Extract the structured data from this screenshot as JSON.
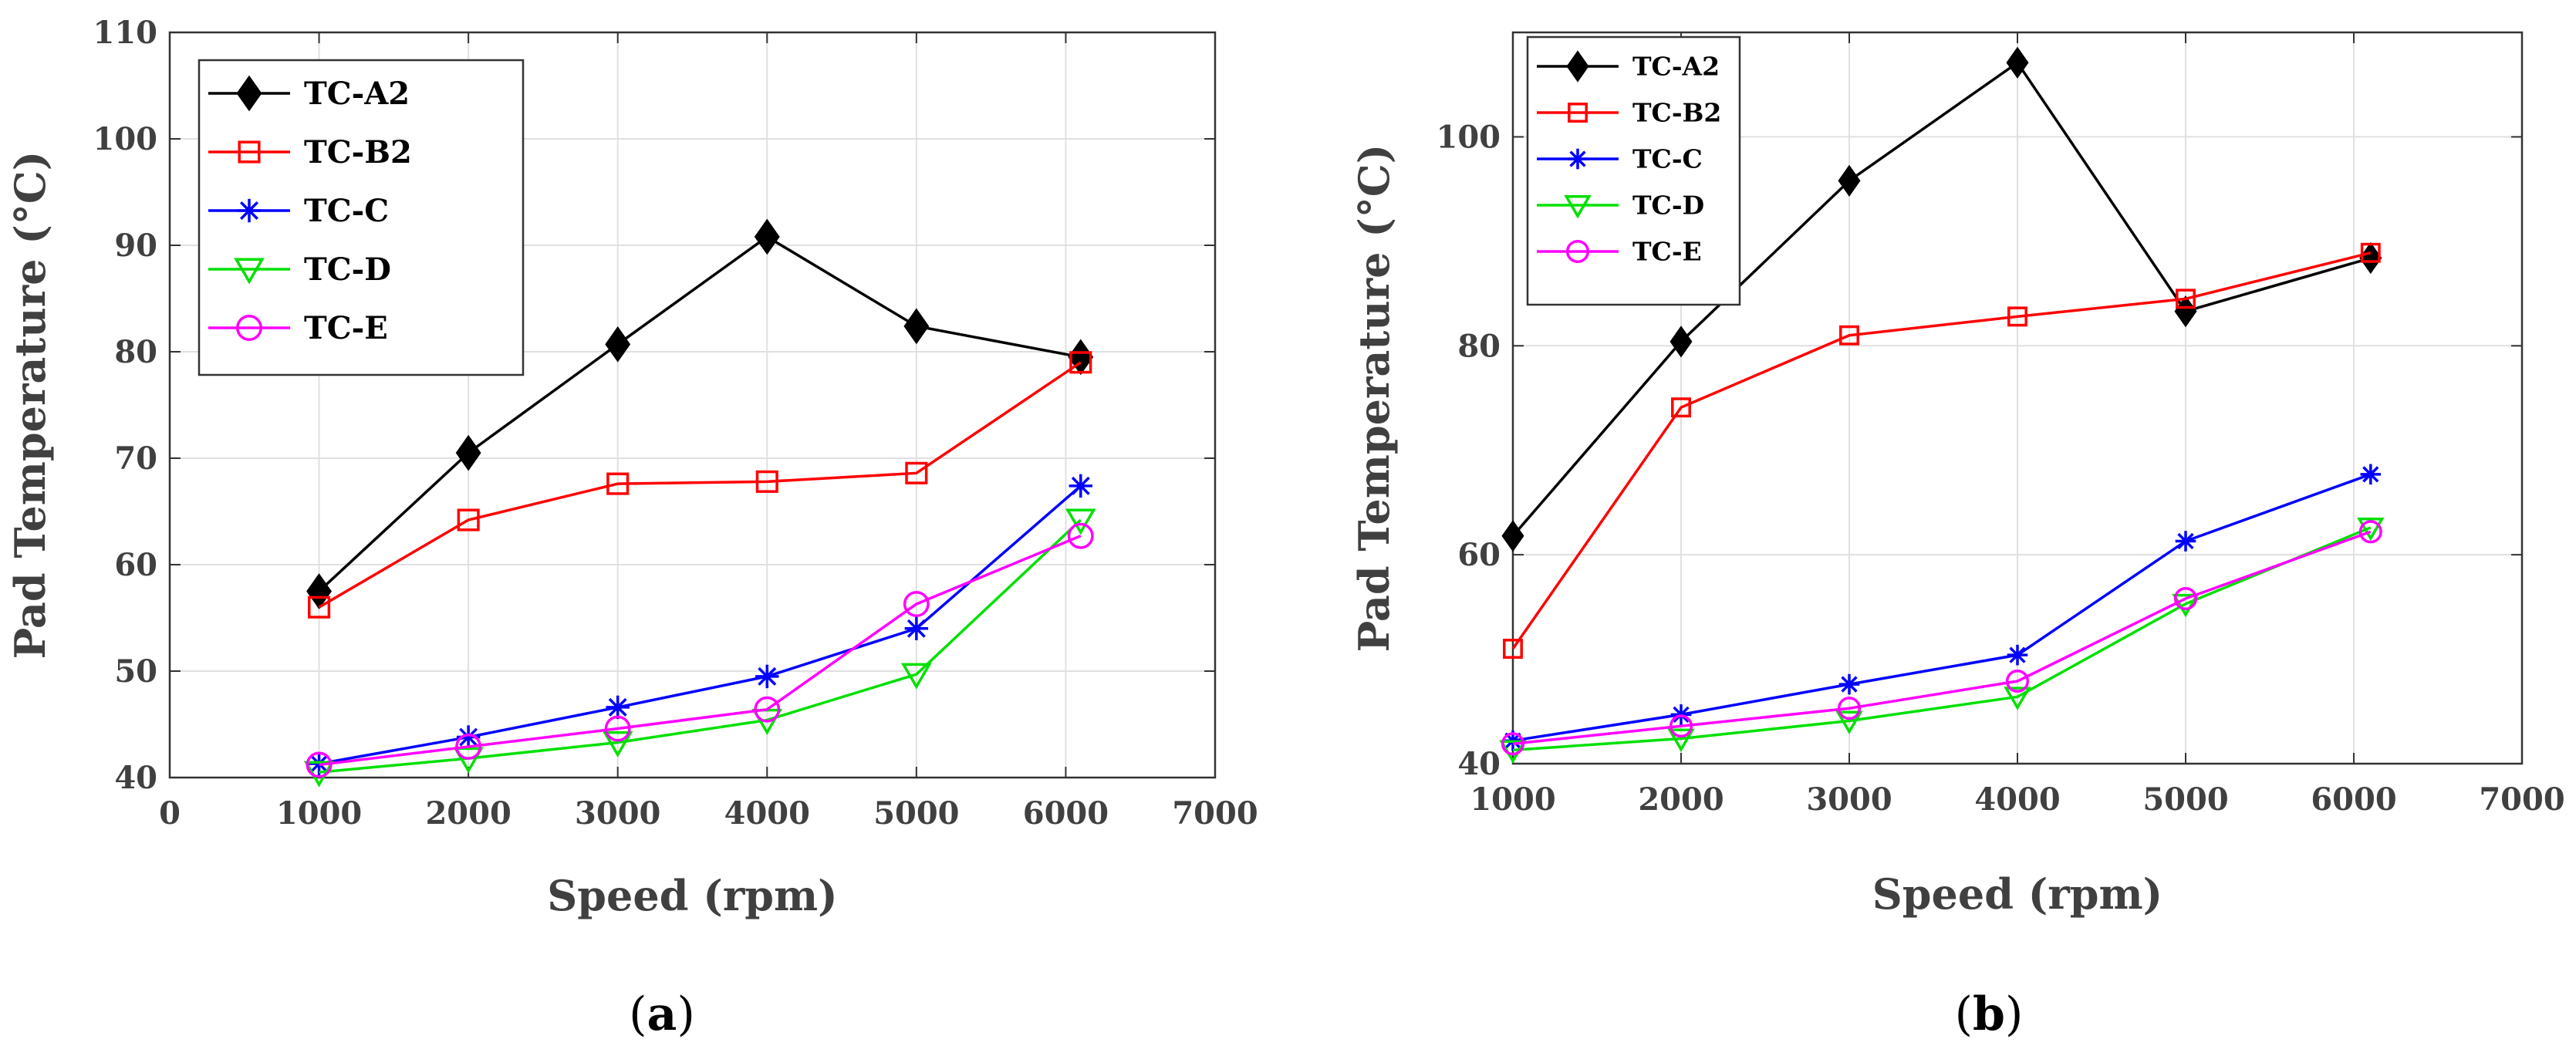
{
  "chart_data": [
    {
      "type": "line",
      "panel_label": "a",
      "xlabel": "Speed (rpm)",
      "ylabel": "Pad Temperature (°C)",
      "xlim": [
        0,
        7000
      ],
      "ylim": [
        40,
        110
      ],
      "xticks": [
        0,
        1000,
        2000,
        3000,
        4000,
        5000,
        6000,
        7000
      ],
      "yticks": [
        40,
        50,
        60,
        70,
        80,
        90,
        100,
        110
      ],
      "grid": true,
      "legend_position": "top-left",
      "x": [
        1000,
        2000,
        3000,
        4000,
        5000,
        6100
      ],
      "series": [
        {
          "name": "TC-A2",
          "color": "#000000",
          "marker": "diamond-filled",
          "values": [
            57.5,
            70.5,
            80.7,
            90.8,
            82.4,
            79.5
          ]
        },
        {
          "name": "TC-B2",
          "color": "#ff0000",
          "marker": "square",
          "values": [
            56.0,
            64.2,
            67.6,
            67.8,
            68.6,
            79.0
          ]
        },
        {
          "name": "TC-C",
          "color": "#0000ff",
          "marker": "asterisk",
          "values": [
            41.3,
            43.8,
            46.6,
            49.5,
            54.0,
            67.4
          ]
        },
        {
          "name": "TC-D",
          "color": "#00e000",
          "marker": "triangle-down",
          "values": [
            40.5,
            41.8,
            43.3,
            45.4,
            49.7,
            64.2
          ]
        },
        {
          "name": "TC-E",
          "color": "#ff00ff",
          "marker": "circle",
          "values": [
            41.2,
            42.9,
            44.6,
            46.4,
            56.3,
            62.7
          ]
        }
      ]
    },
    {
      "type": "line",
      "panel_label": "b",
      "xlabel": "Speed (rpm)",
      "ylabel": "Pad Temperature (°C)",
      "xlim": [
        1000,
        7000
      ],
      "ylim": [
        40,
        110
      ],
      "xticks": [
        1000,
        2000,
        3000,
        4000,
        5000,
        6000,
        7000
      ],
      "yticks": [
        40,
        60,
        80,
        100
      ],
      "grid": true,
      "legend_position": "top-left",
      "x": [
        1000,
        2000,
        3000,
        4000,
        5000,
        6100
      ],
      "series": [
        {
          "name": "TC-A2",
          "color": "#000000",
          "marker": "diamond-filled",
          "values": [
            61.8,
            80.4,
            95.8,
            107.1,
            83.3,
            88.4
          ]
        },
        {
          "name": "TC-B2",
          "color": "#ff0000",
          "marker": "square",
          "values": [
            51.0,
            74.1,
            81.0,
            82.8,
            84.5,
            88.9
          ]
        },
        {
          "name": "TC-C",
          "color": "#0000ff",
          "marker": "asterisk",
          "values": [
            42.2,
            44.7,
            47.6,
            50.4,
            61.3,
            67.7
          ]
        },
        {
          "name": "TC-D",
          "color": "#00e000",
          "marker": "triangle-down",
          "values": [
            41.3,
            42.4,
            44.1,
            46.4,
            55.3,
            62.6
          ]
        },
        {
          "name": "TC-E",
          "color": "#ff00ff",
          "marker": "circle",
          "values": [
            41.9,
            43.6,
            45.3,
            47.9,
            55.8,
            62.2
          ]
        }
      ]
    }
  ]
}
